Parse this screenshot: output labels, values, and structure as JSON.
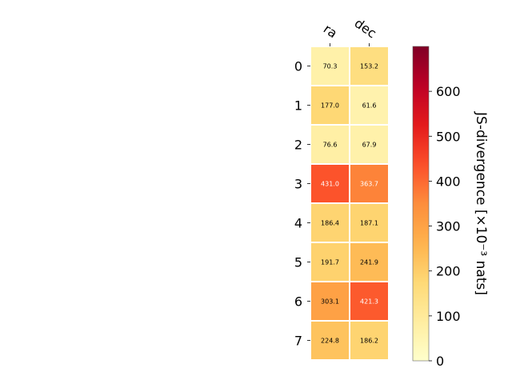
{
  "chart_data": {
    "type": "heatmap",
    "columns": [
      "ra",
      "dec"
    ],
    "rows": [
      "0",
      "1",
      "2",
      "3",
      "4",
      "5",
      "6",
      "7"
    ],
    "values": [
      [
        70.3,
        153.2
      ],
      [
        177.0,
        61.6
      ],
      [
        76.6,
        67.9
      ],
      [
        431.0,
        363.7
      ],
      [
        186.4,
        187.1
      ],
      [
        191.7,
        241.9
      ],
      [
        303.1,
        421.3
      ],
      [
        224.8,
        186.2
      ]
    ],
    "cell_labels": [
      [
        "70.3",
        "153.2"
      ],
      [
        "177.0",
        "61.6"
      ],
      [
        "76.6",
        "67.9"
      ],
      [
        "431.0",
        "363.7"
      ],
      [
        "186.4",
        "187.1"
      ],
      [
        "191.7",
        "241.9"
      ],
      [
        "303.1",
        "421.3"
      ],
      [
        "224.8",
        "186.2"
      ]
    ],
    "colorbar": {
      "label": "JS-divergence [×10⁻³ nats]",
      "colormap": "YlOrRd",
      "range": [
        0,
        700
      ],
      "ticks": [
        "0",
        "100",
        "200",
        "300",
        "400",
        "500",
        "600"
      ],
      "tick_values": [
        0,
        100,
        200,
        300,
        400,
        500,
        600
      ]
    },
    "title": "",
    "xlabel": "",
    "ylabel": "",
    "grid": false
  }
}
